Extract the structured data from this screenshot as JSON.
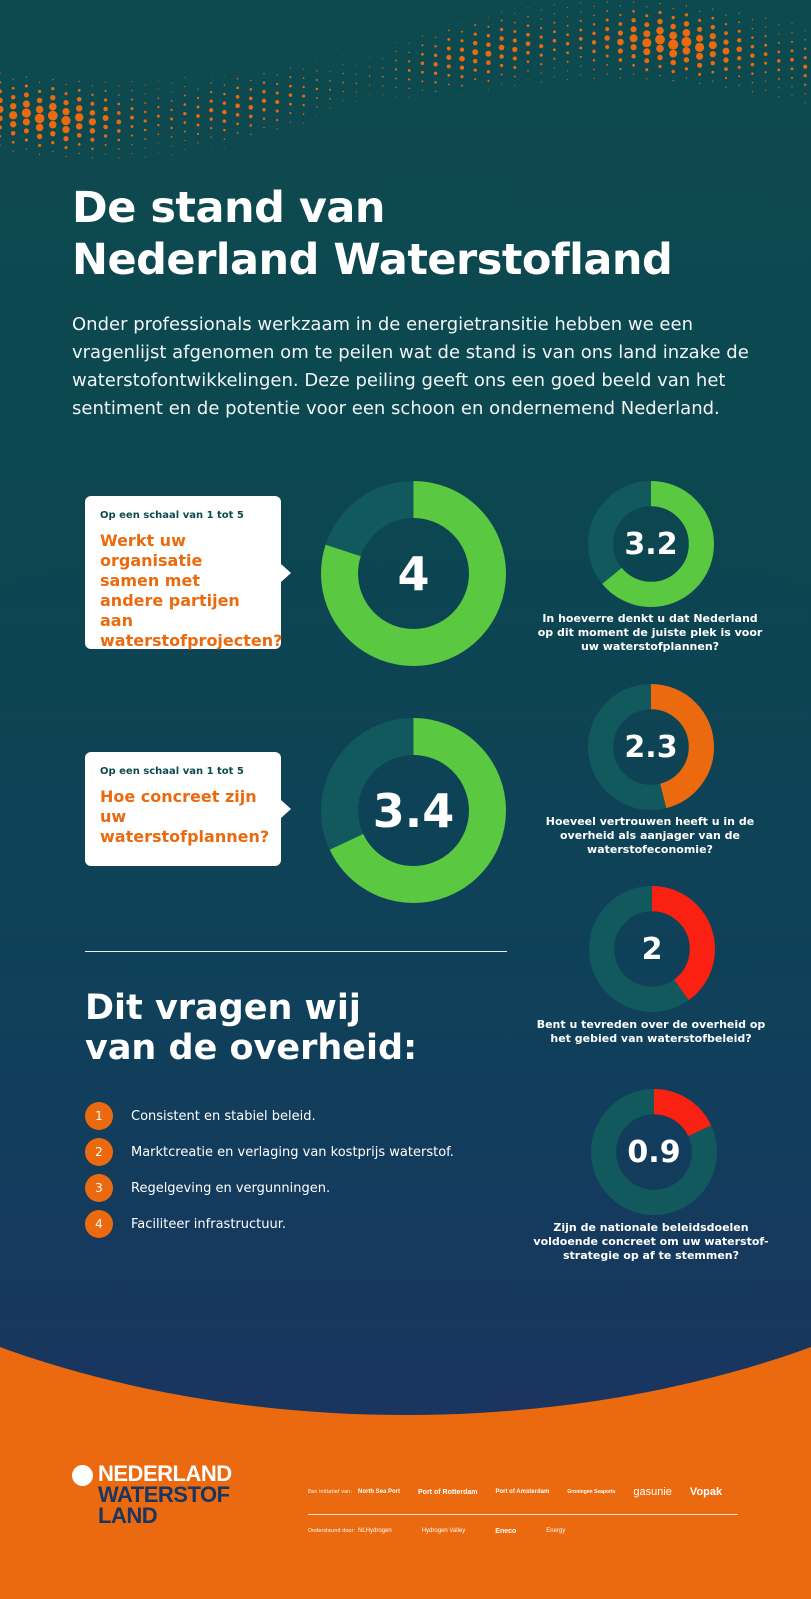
{
  "title_line1": "De stand van",
  "title_line2": "Nederland Waterstofland",
  "intro": "Onder professionals werkzaam in de energietransitie hebben we een vragenlijst afgenomen om te peilen wat de stand is van ons land inzake de waterstofontwikkelingen. Deze peiling geeft ons een goed beeld van het sentiment en de potentie voor een schoon en ondernemend Nederland.",
  "colors": {
    "background": "#0d4a4f",
    "orange": "#ec6a0f",
    "green": "#5ac840",
    "red": "#fa2012",
    "track": "#12595e",
    "navy": "#1a3560"
  },
  "large_questions": [
    {
      "scale": "Op een schaal van 1 tot 5",
      "question": "Werkt uw organisatie samen met andere partijen aan waterstofprojecten?",
      "value": "4",
      "fraction": 0.8
    },
    {
      "scale": "Op een schaal van 1 tot 5",
      "question": "Hoe concreet zijn uw waterstofplannen?",
      "value": "3.4",
      "fraction": 0.68
    }
  ],
  "small_questions": [
    {
      "value": "3.2",
      "fraction": 0.64,
      "color": "#5ac840",
      "caption": "In hoeverre denkt u dat Nederland op dit moment de juiste plek is voor uw waterstofplannen?"
    },
    {
      "value": "2.3",
      "fraction": 0.46,
      "color": "#ec6a0f",
      "caption": "Hoeveel vertrouwen heeft u in de overheid als aanjager van de waterstofeconomie?"
    },
    {
      "value": "2",
      "fraction": 0.4,
      "color": "#fa2012",
      "caption": "Bent u tevreden over de overheid op het gebied van waterstofbeleid?"
    },
    {
      "value": "0.9",
      "fraction": 0.18,
      "color": "#fa2012",
      "caption": "Zijn de nationale beleidsdoelen voldoende concreet om uw waterstof-strategie op af te stemmen?"
    }
  ],
  "ask_title_line1": "Dit vragen wij",
  "ask_title_line2": "van de overheid:",
  "asks": [
    {
      "num": "1",
      "text": "Consistent en stabiel beleid."
    },
    {
      "num": "2",
      "text": "Marktcreatie en verlaging van kostprijs waterstof."
    },
    {
      "num": "3",
      "text": "Regelgeving en vergunningen."
    },
    {
      "num": "4",
      "text": "Faciliteer infrastructuur."
    }
  ],
  "logo": {
    "line1": "NEDERLAND",
    "line2": "WATERSTOF",
    "line3": "LAND"
  },
  "partners": {
    "initiative_label": "Een initiatief van:",
    "initiators": [
      "North Sea Port",
      "Port of Rotterdam",
      "Port of Amsterdam",
      "Groningen Seaports",
      "gasunie",
      "Vopak"
    ],
    "support_label": "Ondersteund door:",
    "supporters": [
      "NLHydrogen",
      "Hydrogen Valley",
      "Eneco",
      "Energy"
    ]
  }
}
